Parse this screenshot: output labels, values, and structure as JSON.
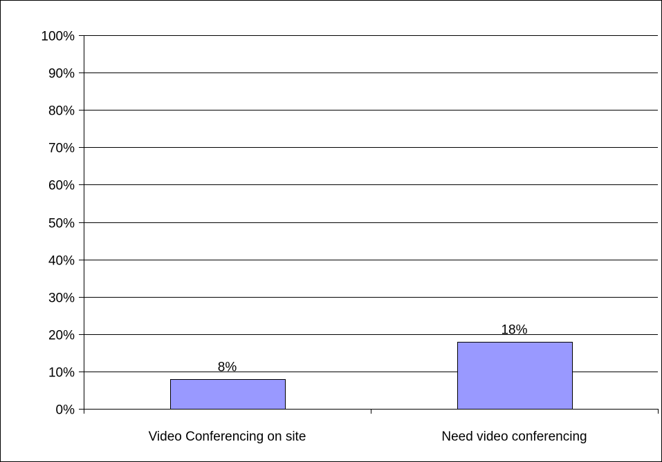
{
  "chart_data": {
    "type": "bar",
    "title": "",
    "xlabel": "",
    "ylabel": "",
    "categories": [
      "Video Conferencing on site",
      "Need video conferencing"
    ],
    "values": [
      0.08,
      0.18
    ],
    "data_labels": [
      "8%",
      "18%"
    ],
    "ylim": [
      0,
      1
    ],
    "y_ticks": [
      0,
      0.1,
      0.2,
      0.3,
      0.4,
      0.5,
      0.6,
      0.7,
      0.8,
      0.9,
      1.0
    ],
    "y_tick_labels": [
      "0%",
      "10%",
      "20%",
      "30%",
      "40%",
      "50%",
      "60%",
      "70%",
      "80%",
      "90%",
      "100%"
    ],
    "grid": true,
    "legend": "none",
    "colors": {
      "bar_fill": "#9999FF",
      "bar_stroke": "#000000",
      "gridline": "#000000",
      "axis": "#000000",
      "frame": "#000000",
      "background": "#FFFFFF"
    }
  }
}
